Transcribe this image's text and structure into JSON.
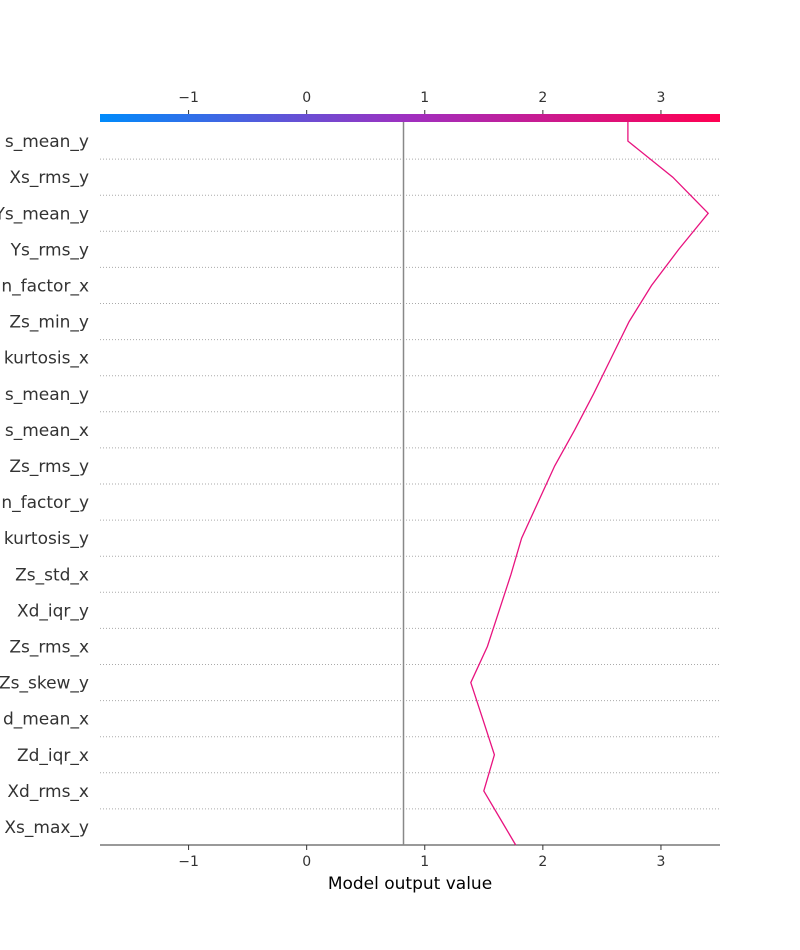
{
  "chart_data": {
    "type": "line",
    "subtype": "shap-decision-plot",
    "xlabel": "Model output value",
    "xlim": [
      -1.75,
      3.5
    ],
    "xticks": [
      -1,
      0,
      1,
      2,
      3
    ],
    "xtick_labels": [
      "−1",
      "0",
      "1",
      "2",
      "3"
    ],
    "base_value": 0.82,
    "colorbar": {
      "position": "top",
      "low_color": "#008bfb",
      "mid_color": "#a02fbf",
      "high_color": "#ff0052"
    },
    "line_color": "#e8137f",
    "features": [
      "Xs_mean_y",
      "Xs_rms_y",
      "Ys_mean_y",
      "Ys_rms_y",
      "Xm_factor_x",
      "Zs_min_y",
      "Xs_kurtosis_x",
      "Zs_mean_y",
      "Xs_mean_x",
      "Zs_rms_y",
      "Xm_factor_y",
      "Zs_kurtosis_y",
      "Zs_std_x",
      "Xd_iqr_y",
      "Zs_rms_x",
      "Zs_skew_y",
      "Xd_mean_x",
      "Zd_iqr_x",
      "Xd_rms_x",
      "Xs_max_y"
    ],
    "feature_labels": [
      "s_mean_y",
      "Xs_rms_y",
      "Ys_mean_y",
      "Ys_rms_y",
      "n_factor_x",
      "Zs_min_y",
      "kurtosis_x",
      "s_mean_y",
      "s_mean_x",
      "Zs_rms_y",
      "n_factor_y",
      "kurtosis_y",
      "Zs_std_x",
      "Xd_iqr_y",
      "Zs_rms_x",
      "Zs_skew_y",
      "d_mean_x",
      "Zd_iqr_x",
      "Xd_rms_x",
      "Xs_max_y"
    ],
    "cumulative_values": [
      2.72,
      3.1,
      3.4,
      3.15,
      2.92,
      2.73,
      2.58,
      2.43,
      2.27,
      2.1,
      1.96,
      1.82,
      1.73,
      1.63,
      1.53,
      1.39,
      1.49,
      1.59,
      1.5,
      1.68
    ]
  }
}
